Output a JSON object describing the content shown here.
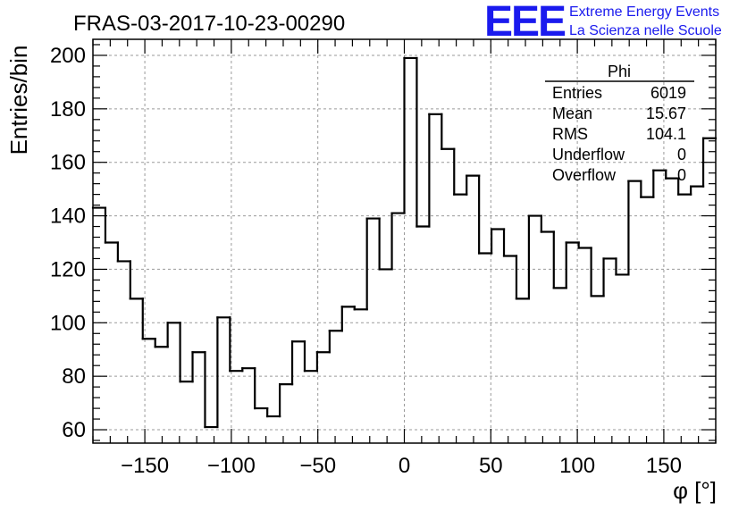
{
  "brand": {
    "logo": "EEE",
    "line1": "Extreme Energy Events",
    "line2": "La Scienza nelle Scuole",
    "color": "#1a1aee"
  },
  "stats": {
    "title": "Phi",
    "rows": [
      {
        "label": "Entries",
        "value": "6019"
      },
      {
        "label": "Mean",
        "value": "15.67"
      },
      {
        "label": "RMS",
        "value": "104.1"
      },
      {
        "label": "Underflow",
        "value": "0"
      },
      {
        "label": "Overflow",
        "value": "0"
      }
    ]
  },
  "chart_data": {
    "type": "bar",
    "style": "step-histogram",
    "title": "FRAS-03-2017-10-23-00290",
    "xlabel": "φ [°]",
    "ylabel": "Entries/bin",
    "xlim": [
      -180,
      180
    ],
    "ylim": [
      55,
      206
    ],
    "bin_width": 7.2,
    "x_ticks": [
      -150,
      -100,
      -50,
      0,
      50,
      100,
      150
    ],
    "x_tick_labels": [
      "−150",
      "−100",
      "−50",
      "0",
      "50",
      "100",
      "150"
    ],
    "y_ticks": [
      60,
      80,
      100,
      120,
      140,
      160,
      180,
      200
    ],
    "y_tick_labels": [
      "60",
      "80",
      "100",
      "120",
      "140",
      "160",
      "180",
      "200"
    ],
    "grid": true,
    "line_color": "#000000",
    "values": [
      143,
      130,
      123,
      109,
      94,
      91,
      100,
      78,
      89,
      61,
      102,
      82,
      83,
      68,
      65,
      77,
      93,
      82,
      89,
      97,
      106,
      105,
      139,
      120,
      141,
      199,
      136,
      178,
      165,
      148,
      155,
      126,
      135,
      125,
      109,
      140,
      134,
      113,
      130,
      128,
      110,
      124,
      118,
      153,
      147,
      157,
      154,
      148,
      151,
      169
    ]
  }
}
